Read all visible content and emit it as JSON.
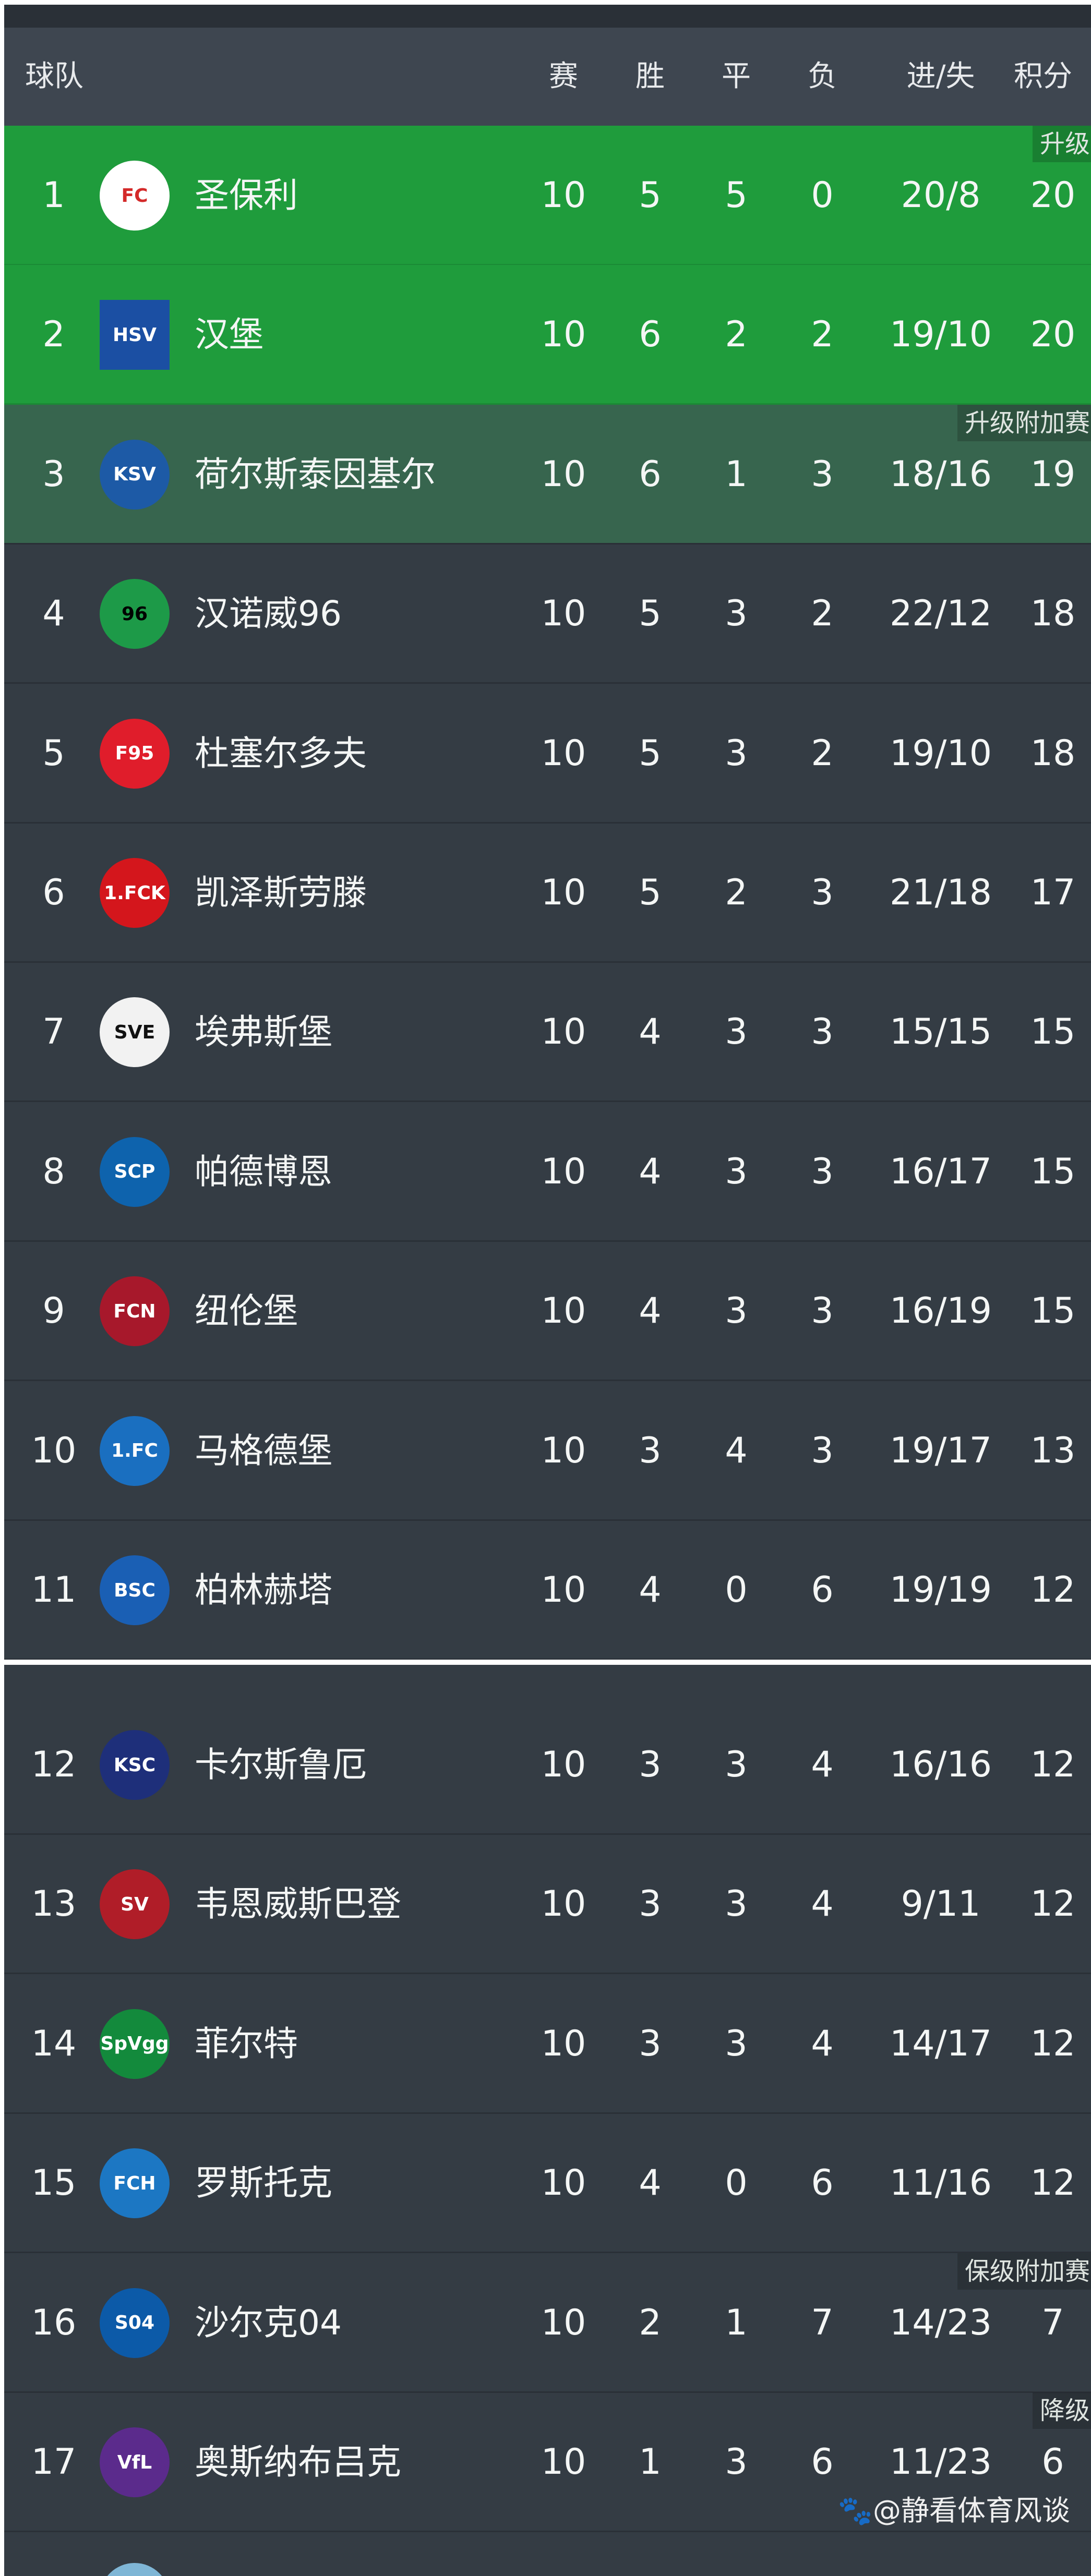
{
  "header": {
    "team": "球队",
    "played": "赛",
    "won": "胜",
    "drawn": "平",
    "lost": "负",
    "goals": "进/失",
    "points": "积分"
  },
  "colors": {
    "promotion": "#1f9c3c",
    "promotion_playoff": "#37654e",
    "background": "#343c44",
    "header": "#3e4650"
  },
  "zones": {
    "promotion": "升级区",
    "promotion_playoff": "升级附加赛区",
    "relegation_playoff": "保级附加赛区",
    "relegation": "降级区"
  },
  "rows": [
    {
      "rank": "1",
      "team": "圣保利",
      "played": "10",
      "won": "5",
      "drawn": "5",
      "lost": "0",
      "goals": "20/8",
      "points": "20",
      "logo": "st-pauli-crest"
    },
    {
      "rank": "2",
      "team": "汉堡",
      "played": "10",
      "won": "6",
      "drawn": "2",
      "lost": "2",
      "goals": "19/10",
      "points": "20",
      "logo": "hamburg-diamond"
    },
    {
      "rank": "3",
      "team": "荷尔斯泰因基尔",
      "played": "10",
      "won": "6",
      "drawn": "1",
      "lost": "3",
      "goals": "18/16",
      "points": "19",
      "logo": "holstein-kiel-crest"
    },
    {
      "rank": "4",
      "team": "汉诺威96",
      "played": "10",
      "won": "5",
      "drawn": "3",
      "lost": "2",
      "goals": "22/12",
      "points": "18",
      "logo": "hannover-96-crest"
    },
    {
      "rank": "5",
      "team": "杜塞尔多夫",
      "played": "10",
      "won": "5",
      "drawn": "3",
      "lost": "2",
      "goals": "19/10",
      "points": "18",
      "logo": "fortuna-crest"
    },
    {
      "rank": "6",
      "team": "凯泽斯劳滕",
      "played": "10",
      "won": "5",
      "drawn": "2",
      "lost": "3",
      "goals": "21/18",
      "points": "17",
      "logo": "fck-crest"
    },
    {
      "rank": "7",
      "team": "埃弗斯堡",
      "played": "10",
      "won": "4",
      "drawn": "3",
      "lost": "3",
      "goals": "15/15",
      "points": "15",
      "logo": "elversberg-crest"
    },
    {
      "rank": "8",
      "team": "帕德博恩",
      "played": "10",
      "won": "4",
      "drawn": "3",
      "lost": "3",
      "goals": "16/17",
      "points": "15",
      "logo": "paderborn-crest"
    },
    {
      "rank": "9",
      "team": "纽伦堡",
      "played": "10",
      "won": "4",
      "drawn": "3",
      "lost": "3",
      "goals": "16/19",
      "points": "15",
      "logo": "fcn-crest"
    },
    {
      "rank": "10",
      "team": "马格德堡",
      "played": "10",
      "won": "3",
      "drawn": "4",
      "lost": "3",
      "goals": "19/17",
      "points": "13",
      "logo": "magdeburg-crest"
    },
    {
      "rank": "11",
      "team": "柏林赫塔",
      "played": "10",
      "won": "4",
      "drawn": "0",
      "lost": "6",
      "goals": "19/19",
      "points": "12",
      "logo": "hertha-flag"
    },
    {
      "rank": "12",
      "team": "卡尔斯鲁厄",
      "played": "10",
      "won": "3",
      "drawn": "3",
      "lost": "4",
      "goals": "16/16",
      "points": "12",
      "logo": "ksc-crest"
    },
    {
      "rank": "13",
      "team": "韦恩威斯巴登",
      "played": "10",
      "won": "3",
      "drawn": "3",
      "lost": "4",
      "goals": "9/11",
      "points": "12",
      "logo": "wehen-crest"
    },
    {
      "rank": "14",
      "team": "菲尔特",
      "played": "10",
      "won": "3",
      "drawn": "3",
      "lost": "4",
      "goals": "14/17",
      "points": "12",
      "logo": "fuerth-clover"
    },
    {
      "rank": "15",
      "team": "罗斯托克",
      "played": "10",
      "won": "4",
      "drawn": "0",
      "lost": "6",
      "goals": "11/16",
      "points": "12",
      "logo": "rostock-crest"
    },
    {
      "rank": "16",
      "team": "沙尔克04",
      "played": "10",
      "won": "2",
      "drawn": "1",
      "lost": "7",
      "goals": "14/23",
      "points": "7",
      "logo": "schalke-crest"
    },
    {
      "rank": "17",
      "team": "奥斯纳布吕克",
      "played": "10",
      "won": "1",
      "drawn": "3",
      "lost": "6",
      "goals": "11/23",
      "points": "6",
      "logo": "vfl-crest"
    }
  ],
  "logo_text": [
    "FC",
    "HSV",
    "KSV",
    "96",
    "F95",
    "1.FCK",
    "SVE",
    "SCP",
    "FCN",
    "1.FC",
    "BSC",
    "KSC",
    "SV",
    "SpVgg",
    "FCH",
    "S04",
    "VfL"
  ],
  "footer": {
    "credit": "@静看体育风谈",
    "icon": "paw-icon"
  }
}
